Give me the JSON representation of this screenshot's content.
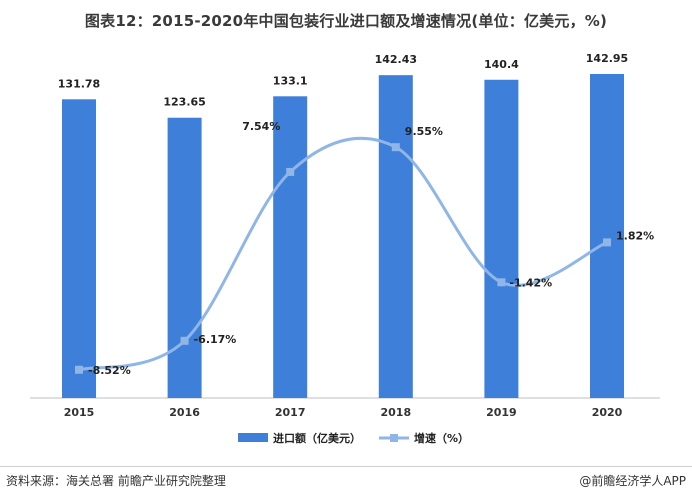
{
  "title": "图表12：2015-2020年中国包装行业进口额及增速情况(单位：亿美元，%)",
  "chart_data": {
    "type": "bar",
    "categories": [
      "2015",
      "2016",
      "2017",
      "2018",
      "2019",
      "2020"
    ],
    "series": [
      {
        "name": "进口额（亿美元）",
        "kind": "bar",
        "color": "#3d7fd9",
        "values": [
          131.78,
          123.65,
          133.1,
          142.43,
          140.4,
          142.95
        ],
        "labels": [
          "131.78",
          "123.65",
          "133.1",
          "142.43",
          "140.4",
          "142.95"
        ]
      },
      {
        "name": "增速（%）",
        "kind": "line",
        "color": "#8fb6e6",
        "values": [
          -8.52,
          -6.17,
          7.54,
          9.55,
          -1.42,
          1.82
        ],
        "labels": [
          "-8.52%",
          "-6.17%",
          "7.54%",
          "9.55%",
          "-1.42%",
          "1.82%"
        ]
      }
    ],
    "ylim_bar": [
      0,
      150
    ],
    "ylim_line": [
      -10,
      12
    ],
    "grid": false,
    "legend_position": "bottom-center"
  },
  "footer": {
    "source": "资料来源：海关总署 前瞻产业研究院整理",
    "brand": "@前瞻经济学人APP"
  }
}
